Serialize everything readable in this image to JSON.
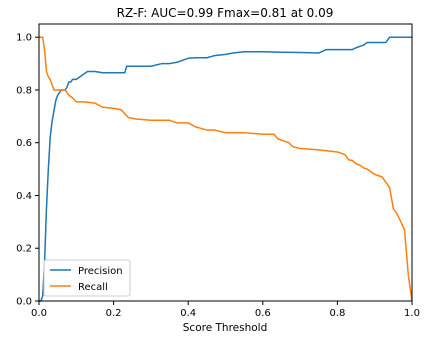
{
  "chart_data": {
    "type": "line",
    "title": "RZ-F: AUC=0.99 Fmax=0.81 at 0.09",
    "xlabel": "Score Threshold",
    "ylabel": "",
    "xlim": [
      0.0,
      1.0
    ],
    "ylim": [
      0.0,
      1.05
    ],
    "xticks": [
      "0.0",
      "0.2",
      "0.4",
      "0.6",
      "0.8",
      "1.0"
    ],
    "yticks": [
      "0.0",
      "0.2",
      "0.4",
      "0.6",
      "0.8",
      "1.0"
    ],
    "grid": false,
    "legend_position": "lower-left",
    "series": [
      {
        "name": "Precision",
        "color": "#1f77b4",
        "x": [
          0.0,
          0.005,
          0.01,
          0.015,
          0.02,
          0.025,
          0.03,
          0.035,
          0.04,
          0.045,
          0.05,
          0.055,
          0.06,
          0.065,
          0.07,
          0.075,
          0.08,
          0.085,
          0.09,
          0.1,
          0.11,
          0.12,
          0.13,
          0.15,
          0.17,
          0.2,
          0.23,
          0.235,
          0.24,
          0.27,
          0.3,
          0.33,
          0.35,
          0.37,
          0.38,
          0.4,
          0.42,
          0.44,
          0.45,
          0.47,
          0.5,
          0.52,
          0.55,
          0.6,
          0.65,
          0.7,
          0.75,
          0.77,
          0.8,
          0.82,
          0.84,
          0.85,
          0.86,
          0.87,
          0.88,
          0.9,
          0.93,
          0.94,
          0.96,
          0.98,
          1.0
        ],
        "y": [
          0.0,
          0.0,
          0.02,
          0.15,
          0.35,
          0.5,
          0.62,
          0.68,
          0.72,
          0.76,
          0.78,
          0.79,
          0.8,
          0.8,
          0.8,
          0.81,
          0.83,
          0.83,
          0.84,
          0.84,
          0.85,
          0.86,
          0.87,
          0.87,
          0.865,
          0.865,
          0.865,
          0.89,
          0.89,
          0.89,
          0.89,
          0.9,
          0.9,
          0.905,
          0.91,
          0.92,
          0.922,
          0.922,
          0.922,
          0.93,
          0.935,
          0.94,
          0.945,
          0.945,
          0.943,
          0.942,
          0.94,
          0.953,
          0.953,
          0.953,
          0.953,
          0.96,
          0.965,
          0.97,
          0.98,
          0.98,
          0.98,
          1.0,
          1.0,
          1.0,
          1.0
        ]
      },
      {
        "name": "Recall",
        "color": "#ff7f0e",
        "x": [
          0.0,
          0.01,
          0.015,
          0.02,
          0.025,
          0.03,
          0.035,
          0.04,
          0.05,
          0.06,
          0.07,
          0.08,
          0.09,
          0.1,
          0.12,
          0.15,
          0.17,
          0.2,
          0.22,
          0.23,
          0.24,
          0.26,
          0.3,
          0.35,
          0.37,
          0.4,
          0.42,
          0.45,
          0.47,
          0.5,
          0.55,
          0.6,
          0.63,
          0.64,
          0.66,
          0.67,
          0.68,
          0.7,
          0.75,
          0.8,
          0.82,
          0.83,
          0.84,
          0.85,
          0.86,
          0.87,
          0.88,
          0.9,
          0.92,
          0.94,
          0.95,
          0.96,
          0.97,
          0.98,
          0.99,
          1.0
        ],
        "y": [
          1.0,
          1.0,
          0.95,
          0.87,
          0.85,
          0.84,
          0.82,
          0.8,
          0.8,
          0.8,
          0.8,
          0.78,
          0.77,
          0.755,
          0.755,
          0.75,
          0.735,
          0.73,
          0.725,
          0.71,
          0.695,
          0.69,
          0.685,
          0.685,
          0.675,
          0.675,
          0.66,
          0.648,
          0.648,
          0.638,
          0.638,
          0.632,
          0.632,
          0.615,
          0.605,
          0.6,
          0.585,
          0.578,
          0.573,
          0.565,
          0.555,
          0.535,
          0.533,
          0.52,
          0.515,
          0.505,
          0.5,
          0.48,
          0.47,
          0.43,
          0.35,
          0.33,
          0.3,
          0.27,
          0.1,
          0.0
        ]
      }
    ]
  }
}
